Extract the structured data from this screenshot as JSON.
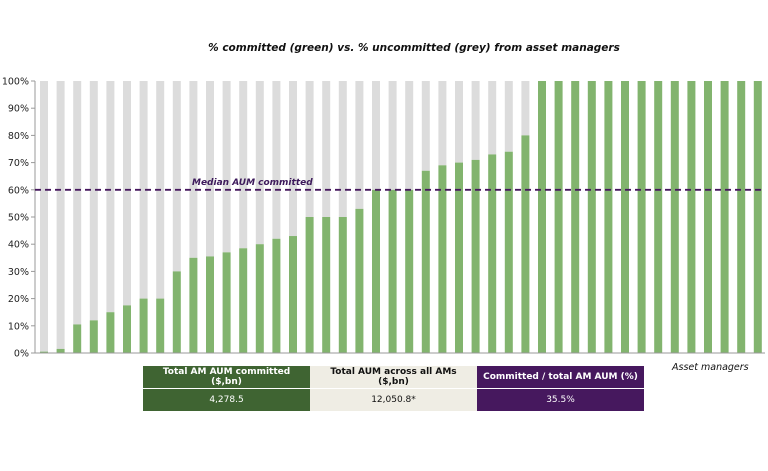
{
  "chart_data": {
    "type": "bar",
    "stacked": true,
    "title": "% committed (green) vs. % uncommitted (grey) from asset managers",
    "xlabel": "Asset managers",
    "ylabel": "",
    "ylim": [
      0,
      100
    ],
    "yticks": [
      "0%",
      "10%",
      "20%",
      "30%",
      "40%",
      "50%",
      "60%",
      "70%",
      "80%",
      "90%",
      "100%"
    ],
    "series": [
      {
        "name": "Committed",
        "color": "#82b46e",
        "values": [
          0.5,
          1.5,
          10.5,
          12,
          15,
          17.5,
          20,
          20,
          30,
          35,
          35.5,
          37,
          38.5,
          40,
          42,
          43,
          50,
          50,
          50,
          53,
          60,
          60,
          60,
          67,
          69,
          70,
          71,
          73,
          74,
          80,
          100,
          100,
          100,
          100,
          100,
          100,
          100,
          100,
          100,
          100,
          100,
          100,
          100,
          100
        ]
      },
      {
        "name": "Uncommitted",
        "color": "#dcdcdc",
        "values_rule": "100 minus committed"
      }
    ],
    "reference_line": {
      "label": "Median AUM committed",
      "value": 60,
      "color": "#46185e",
      "style": "dashed"
    }
  },
  "summary_table": {
    "headers": [
      "Total AM AUM committed ($,bn)",
      "Total AUM across all AMs ($,bn)",
      "Committed / total AM AUM (%)"
    ],
    "values": [
      "4,278.5",
      "12,050.8*",
      "35.5%"
    ]
  }
}
